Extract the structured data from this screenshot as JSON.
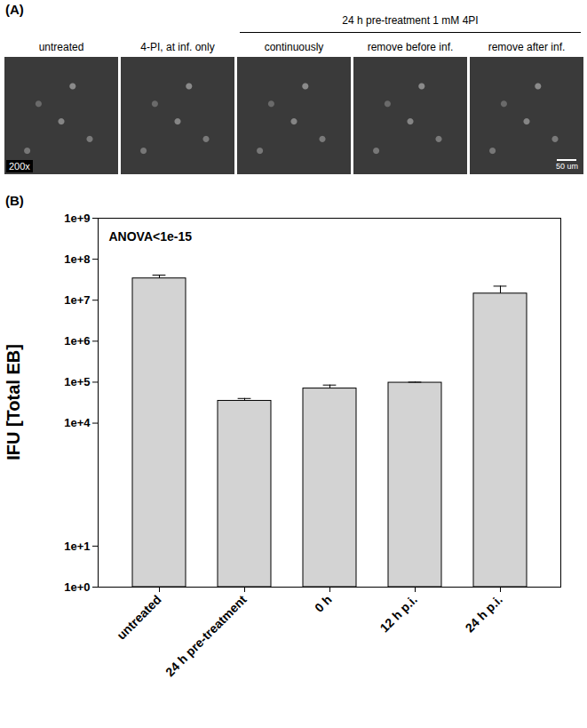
{
  "panel_a": {
    "label": "(A)",
    "images": [
      "untreated",
      "4-PI, at inf. only",
      "continuously",
      "remove before inf.",
      "remove after inf."
    ],
    "group_label": "24 h pre-treatment  1 mM 4PI",
    "magnification": "200x",
    "scale_bar": "50 um"
  },
  "chart_data": {
    "type": "bar",
    "title": "(B)",
    "annotations": [
      "ANOVA<1e-15"
    ],
    "y_label": "IFU [Total EB]",
    "categories": [
      "untreated",
      "24 h pre-treatment",
      "0 h",
      "12 h p.i.",
      "24 h p.i."
    ],
    "values": [
      34000000,
      35000,
      70000,
      97000,
      14500000
    ],
    "errors": [
      7000000,
      5000,
      15000,
      3000,
      7500000
    ],
    "color": "#d3d3d3",
    "log": "y",
    "ylim": [
      1,
      1000000000
    ],
    "yticks": [
      {
        "value": 1,
        "label": "1e+0"
      },
      {
        "value": 10,
        "label": "1e+1"
      },
      {
        "value": 10000,
        "label": "1e+4"
      },
      {
        "value": 100000,
        "label": "1e+5"
      },
      {
        "value": 1000000,
        "label": "1e+6"
      },
      {
        "value": 10000000,
        "label": "1e+7"
      },
      {
        "value": 100000000,
        "label": "1e+8"
      },
      {
        "value": 1000000000,
        "label": "1e+9"
      }
    ],
    "grid": false
  }
}
